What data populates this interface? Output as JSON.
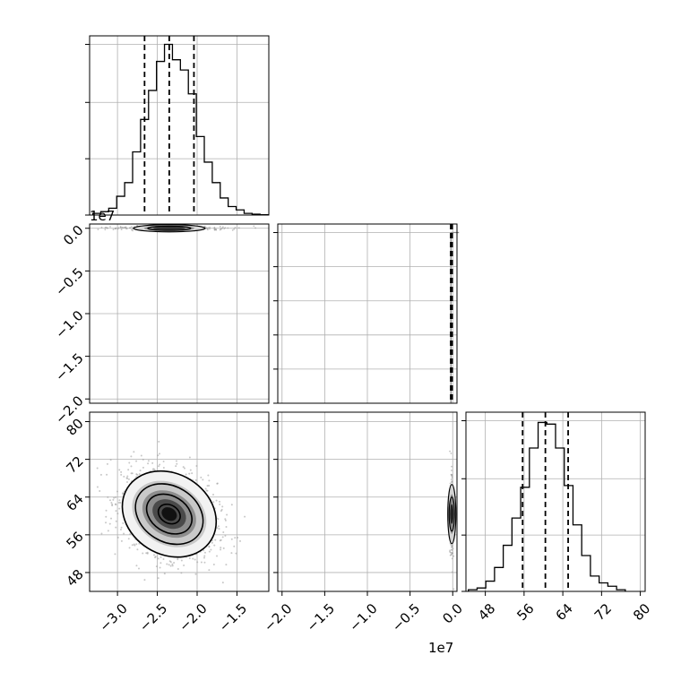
{
  "figure": {
    "offset_text_top": "1e7",
    "offset_text_bottom": "1e7"
  },
  "colors": {
    "line": "#000000",
    "grid": "#b0b0b0",
    "scatter": "#9a9a9a",
    "background": "#ffffff"
  },
  "chart_data": [
    {
      "panel": "hist-param1",
      "type": "bar",
      "title": "",
      "xlabel": "",
      "ylabel": "",
      "xlim": [
        -3.35,
        -1.1
      ],
      "x_ticks_visible": false,
      "y_ticks": [
        0,
        0.33,
        0.66,
        1.0
      ],
      "bin_edges": [
        -3.31,
        -3.21,
        -3.11,
        -3.01,
        -2.91,
        -2.81,
        -2.71,
        -2.61,
        -2.51,
        -2.41,
        -2.31,
        -2.21,
        -2.11,
        -2.01,
        -1.91,
        -1.81,
        -1.71,
        -1.61,
        -1.51,
        -1.41,
        -1.31,
        -1.21,
        -1.11
      ],
      "values": [
        0.01,
        0.02,
        0.04,
        0.11,
        0.19,
        0.37,
        0.56,
        0.73,
        0.9,
        1.0,
        0.91,
        0.85,
        0.71,
        0.46,
        0.31,
        0.19,
        0.1,
        0.05,
        0.03,
        0.01,
        0.005,
        0.002
      ],
      "quantiles": [
        -2.66,
        -2.35,
        -2.04
      ],
      "grid": true
    },
    {
      "panel": "hist-param2",
      "type": "bar",
      "title": "",
      "xlabel": "",
      "ylabel": "",
      "xlim": [
        -2.05,
        0.05
      ],
      "y_ticks": [
        0,
        0.2,
        0.4,
        0.6,
        0.8,
        1.0
      ],
      "bin_edges": [
        -0.01,
        0.0
      ],
      "values": [
        1.0
      ],
      "quantiles": [
        -0.004,
        -0.002,
        0.0
      ],
      "grid": true
    },
    {
      "panel": "hist-param3",
      "type": "bar",
      "title": "",
      "xlabel": "",
      "ylabel": "",
      "xlim": [
        44,
        81
      ],
      "x_ticks": [
        48,
        56,
        64,
        72,
        80
      ],
      "x_tick_labels": [
        "48",
        "56",
        "64",
        "72",
        "80"
      ],
      "y_ticks": [
        0,
        0.33,
        0.66,
        1.0
      ],
      "bin_edges": [
        44.5,
        46.3,
        48.1,
        49.9,
        51.7,
        53.5,
        55.3,
        57.1,
        58.9,
        60.7,
        62.5,
        64.3,
        66.1,
        67.9,
        69.7,
        71.5,
        73.3,
        75.1,
        76.9
      ],
      "values": [
        0.01,
        0.02,
        0.06,
        0.14,
        0.27,
        0.43,
        0.61,
        0.84,
        0.99,
        0.98,
        0.84,
        0.62,
        0.39,
        0.21,
        0.09,
        0.05,
        0.03,
        0.01
      ],
      "quantiles": [
        55.7,
        60.4,
        65.1
      ],
      "grid": true
    },
    {
      "panel": "2d-param1-param2",
      "type": "scatter",
      "title": "",
      "xlabel": "",
      "ylabel": "",
      "xlim": [
        -3.35,
        -1.1
      ],
      "ylim": [
        -2.05,
        0.05
      ],
      "y_ticks": [
        0.0,
        -0.5,
        -1.0,
        -1.5,
        -2.0
      ],
      "y_tick_labels": [
        "0.0",
        "−0.5",
        "−1.0",
        "−1.5",
        "−2.0"
      ],
      "y_offset": "1e7",
      "center": [
        -2.35,
        0.0
      ],
      "spread": [
        0.3,
        0.004
      ],
      "grid": true
    },
    {
      "panel": "2d-param1-param3",
      "type": "scatter",
      "title": "",
      "xlabel": "",
      "ylabel": "",
      "xlim": [
        -3.35,
        -1.1
      ],
      "ylim": [
        44,
        82
      ],
      "x_ticks": [
        -3.0,
        -2.5,
        -2.0,
        -1.5
      ],
      "x_tick_labels": [
        "−3.0",
        "−2.5",
        "−2.0",
        "−1.5"
      ],
      "x_offset": "1e7",
      "y_ticks": [
        48,
        56,
        64,
        72,
        80
      ],
      "y_tick_labels": [
        "48",
        "56",
        "64",
        "72",
        "80"
      ],
      "center": [
        -2.35,
        60.4
      ],
      "spread": [
        0.3,
        4.7
      ],
      "correlation": -0.28,
      "contour_levels": [
        "0.5-sigma",
        "1-sigma",
        "1.5-sigma",
        "2-sigma"
      ],
      "grid": true
    },
    {
      "panel": "2d-param2-param3",
      "type": "scatter",
      "title": "",
      "xlabel": "",
      "ylabel": "",
      "xlim": [
        -2.05,
        0.05
      ],
      "ylim": [
        44,
        82
      ],
      "x_ticks": [
        -2.0,
        -1.5,
        -1.0,
        -0.5,
        0.0
      ],
      "x_tick_labels": [
        "−2.0",
        "−1.5",
        "−1.0",
        "−0.5",
        "0.0"
      ],
      "x_offset": "1e7",
      "center": [
        0.0,
        60.4
      ],
      "spread": [
        0.004,
        4.7
      ],
      "grid": true
    }
  ]
}
